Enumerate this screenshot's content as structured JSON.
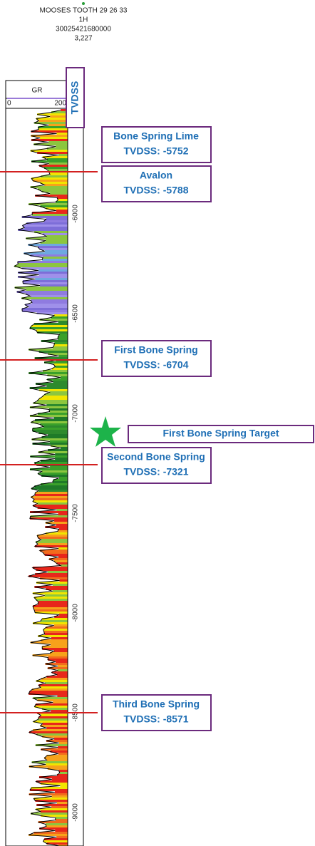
{
  "header": {
    "well_name": "MOOSES TOOTH 29 26 33",
    "well_number": "1H",
    "api": "30025421680000",
    "elevation": "3,227"
  },
  "track": {
    "curve": "GR",
    "min_label": "0",
    "max_label": "200",
    "depth_title": "TVDSS",
    "depth_labels": [
      "-6000",
      "-6500",
      "-7000",
      "-7500",
      "-8000",
      "-8500",
      "-9000"
    ]
  },
  "tops": [
    {
      "name": "Bone Spring Lime",
      "depth": "TVDSS: -5752"
    },
    {
      "name": "Avalon",
      "depth": "TVDSS: -5788"
    },
    {
      "name": "First Bone Spring",
      "depth": "TVDSS: -6704"
    },
    {
      "name": "Second Bone Spring",
      "depth": "TVDSS: -7321"
    },
    {
      "name": "Third Bone Spring",
      "depth": "TVDSS: -8571"
    }
  ],
  "target": "First Bone Spring Target"
}
